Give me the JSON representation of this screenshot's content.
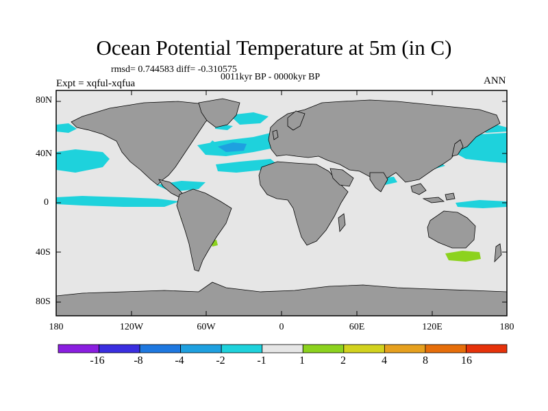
{
  "title": "Ocean Potential Temperature at 5m (in C)",
  "stats_text": "rmsd= 0.744583  diff= -0.310575",
  "period_text": "0011kyr BP - 0000kyr BP",
  "experiment_text": "Expt = xqful-xqfua",
  "season_label": "ANN",
  "lat_labels": [
    "80N",
    "40N",
    "0",
    "40S",
    "80S"
  ],
  "lon_labels": [
    "180",
    "120W",
    "60W",
    "0",
    "60E",
    "120E",
    "180"
  ],
  "colorbar": {
    "colors": [
      "#8a1ee0",
      "#3a2ee0",
      "#1e78e0",
      "#1ea0e0",
      "#1ed2dc",
      "#e6e6e6",
      "#8cd21e",
      "#d2d21e",
      "#e6a01e",
      "#e66e0a",
      "#e6320a"
    ],
    "tick_labels": [
      "-16",
      "-8",
      "-4",
      "-2",
      "-1",
      "1",
      "2",
      "4",
      "8",
      "16"
    ]
  },
  "colors": {
    "land": "#9b9b9b",
    "ocean_neutral": "#e6e6e6",
    "coast": "#000000"
  }
}
